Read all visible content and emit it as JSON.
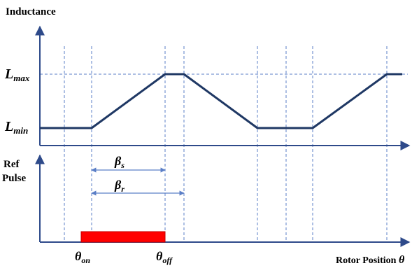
{
  "colors": {
    "axis": "#2e4a8a",
    "curve": "#1f3864",
    "guide": "#5b7fc7",
    "pulse": "#ff0000",
    "text": "#000000"
  },
  "labels": {
    "inductance_axis": "Inductance",
    "ref_pulse_line1": "Ref",
    "ref_pulse_line2": "Pulse",
    "l_max": {
      "main": "L",
      "sub": "max"
    },
    "l_min": {
      "main": "L",
      "sub": "min"
    },
    "beta_s": {
      "main": "β",
      "sub": "s"
    },
    "beta_r": {
      "main": "β",
      "sub": "r"
    },
    "theta_on": {
      "main": "θ",
      "sub": "on"
    },
    "theta_off": {
      "main": "θ",
      "sub": "off"
    },
    "rotor_axis": {
      "text": "Rotor Position ",
      "symbol": "θ"
    }
  }
}
